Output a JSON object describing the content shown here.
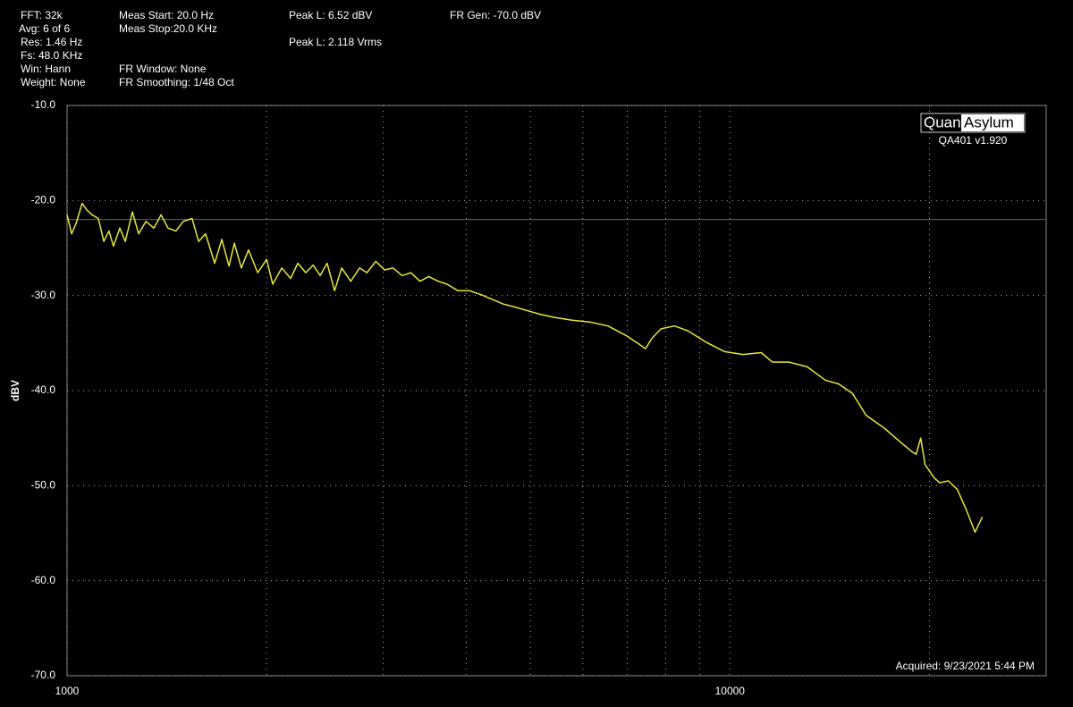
{
  "chart_data": {
    "type": "line",
    "info": [
      "FFT: 32k",
      "Avg: 6 of 6",
      "Res: 1.46 Hz",
      "Fs: 48.0 KHz",
      "Win: Hann",
      "Weight: None",
      "Meas Start: 20.0 Hz",
      "Meas Stop:20.0 KHz",
      "FR Window: None",
      "FR Smoothing: 1/48 Oct",
      "Peak L: 6.52 dBV",
      "Peak L: 2.118 Vrms",
      "FR Gen: -70.0  dBV"
    ],
    "logo": [
      "Quant",
      "Asylum"
    ],
    "version": "QA401 v1.920",
    "acquired": "Acquired: 9/23/2021  5:44 PM",
    "y_label": "dBV",
    "xscale": "log",
    "grid": true,
    "xlim": [
      1000,
      30000
    ],
    "xticks": [
      1000,
      10000
    ],
    "xgrid": [
      2000,
      3000,
      4000,
      5000,
      6000,
      7000,
      8000,
      9000,
      20000
    ],
    "ylim": [
      -70,
      -10
    ],
    "yticks": [
      {
        "value": -70,
        "label": "-70.0"
      },
      {
        "value": -60,
        "label": "-60.0"
      },
      {
        "value": -50,
        "label": "-50.0"
      },
      {
        "value": -40,
        "label": "-40.0"
      },
      {
        "value": -30,
        "label": "-30.0"
      },
      {
        "value": -20,
        "label": "-20.0"
      },
      {
        "value": -10,
        "label": "-10.0"
      }
    ],
    "reference_line": {
      "value": -22,
      "color": "#2e7d32"
    },
    "series": [
      {
        "color": "#e6e63c",
        "x": [
          1000,
          1016,
          1032,
          1054,
          1071,
          1091,
          1115,
          1136,
          1157,
          1175,
          1201,
          1224,
          1255,
          1282,
          1315,
          1352,
          1386,
          1420,
          1460,
          1497,
          1544,
          1579,
          1618,
          1670,
          1712,
          1755,
          1788,
          1832,
          1878,
          1939,
          2000,
          2043,
          2109,
          2174,
          2229,
          2292,
          2351,
          2409,
          2468,
          2533,
          2596,
          2679,
          2763,
          2833,
          2923,
          3013,
          3102,
          3202,
          3301,
          3407,
          3512,
          3630,
          3743,
          3888,
          4050,
          4209,
          4379,
          4551,
          4730,
          4955,
          5188,
          5438,
          5782,
          6153,
          6547,
          6967,
          7288,
          7456,
          7627,
          7870,
          8245,
          8634,
          9205,
          9817,
          10466,
          11148,
          11587,
          12275,
          13077,
          13930,
          14600,
          15310,
          16050,
          17130,
          17930,
          18800,
          19100,
          19400,
          19700,
          20350,
          20720,
          21360,
          22030,
          22720,
          23430,
          24030
        ],
        "values": [
          -21.5,
          -23.5,
          -22.4,
          -20.3,
          -21.0,
          -21.5,
          -21.9,
          -24.3,
          -23.2,
          -24.8,
          -22.9,
          -24.3,
          -21.2,
          -23.5,
          -22.2,
          -22.9,
          -21.5,
          -22.9,
          -23.2,
          -22.2,
          -21.9,
          -24.3,
          -23.5,
          -26.6,
          -24.1,
          -26.9,
          -24.5,
          -27.1,
          -25.2,
          -27.6,
          -26.2,
          -28.8,
          -27.1,
          -28.2,
          -26.6,
          -27.6,
          -26.8,
          -27.9,
          -26.6,
          -29.5,
          -27.1,
          -28.5,
          -27.1,
          -27.6,
          -26.4,
          -27.3,
          -27.1,
          -27.9,
          -27.6,
          -28.5,
          -28.0,
          -28.5,
          -28.8,
          -29.5,
          -29.5,
          -29.9,
          -30.4,
          -30.9,
          -31.2,
          -31.6,
          -32.0,
          -32.3,
          -32.6,
          -32.8,
          -33.2,
          -34.2,
          -35.1,
          -35.6,
          -34.5,
          -33.5,
          -33.2,
          -33.7,
          -34.9,
          -35.9,
          -36.2,
          -36.0,
          -37.0,
          -37.0,
          -37.5,
          -38.9,
          -39.3,
          -40.3,
          -42.6,
          -44.0,
          -45.2,
          -46.4,
          -46.7,
          -45.0,
          -47.8,
          -49.2,
          -49.7,
          -49.5,
          -50.4,
          -52.5,
          -54.9,
          -53.3
        ]
      }
    ]
  }
}
